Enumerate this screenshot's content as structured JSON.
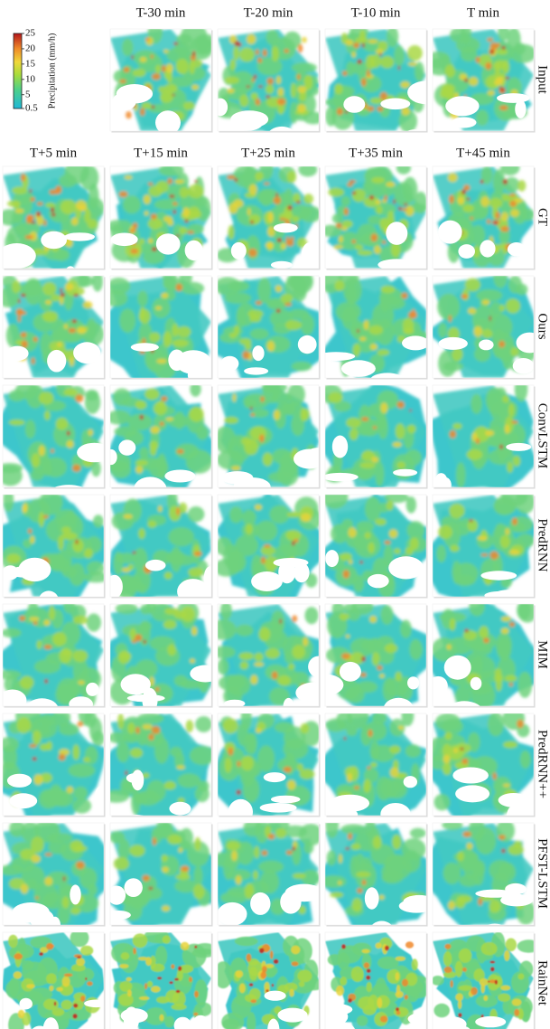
{
  "colorbar": {
    "label": "Precipitation (mm/h)",
    "ylim": [
      0.5,
      25
    ],
    "yticks": [
      25,
      20,
      15,
      10,
      5,
      0.5
    ]
  },
  "input_row": {
    "label": "Input",
    "columns": [
      "T-30 min",
      "T-20 min",
      "T-10 min",
      "T min"
    ]
  },
  "forecast_columns": [
    "T+5 min",
    "T+15 min",
    "T+25 min",
    "T+35 min",
    "T+45 min"
  ],
  "rows": [
    "GT",
    "Ours",
    "ConvLSTM",
    "PredRNN",
    "MIM",
    "PredRNN++",
    "PFST-LSTM",
    "RainNet"
  ]
}
